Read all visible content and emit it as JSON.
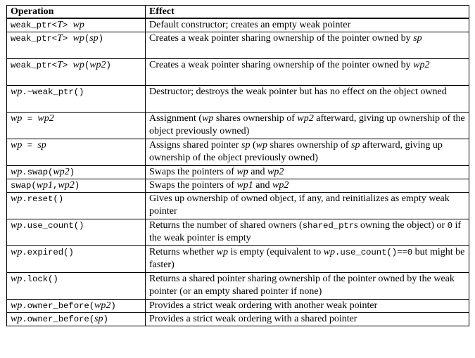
{
  "headers": {
    "operation": "Operation",
    "effect": "Effect"
  },
  "rows": [
    {
      "op": [
        [
          "c",
          "weak_ptr<"
        ],
        [
          "i",
          "T"
        ],
        [
          "c",
          "> "
        ],
        [
          "i",
          "wp"
        ]
      ],
      "effect": [
        [
          "t",
          "Default constructor; creates an empty weak pointer"
        ]
      ],
      "lines": 1
    },
    {
      "op": [
        [
          "c",
          "weak_ptr<"
        ],
        [
          "i",
          "T"
        ],
        [
          "c",
          "> "
        ],
        [
          "i",
          "wp"
        ],
        [
          "c",
          "("
        ],
        [
          "i",
          "sp"
        ],
        [
          "c",
          ")"
        ]
      ],
      "effect": [
        [
          "t",
          "Creates a weak pointer sharing ownership of the pointer owned by "
        ],
        [
          "i",
          "sp"
        ]
      ],
      "lines": 2
    },
    {
      "op": [
        [
          "c",
          "weak_ptr<"
        ],
        [
          "i",
          "T"
        ],
        [
          "c",
          "> "
        ],
        [
          "i",
          "wp"
        ],
        [
          "c",
          "("
        ],
        [
          "i",
          "wp2"
        ],
        [
          "c",
          ")"
        ]
      ],
      "effect": [
        [
          "t",
          "Creates a weak pointer sharing ownership of the pointer owned by "
        ],
        [
          "i",
          "wp2"
        ]
      ],
      "lines": 2
    },
    {
      "op": [
        [
          "i",
          "wp"
        ],
        [
          "c",
          ".~weak_ptr()"
        ]
      ],
      "effect": [
        [
          "t",
          "Destructor; destroys the weak pointer but has no effect on the object owned"
        ]
      ],
      "lines": 2
    },
    {
      "op": [
        [
          "i",
          "wp"
        ],
        [
          "c",
          " = "
        ],
        [
          "i",
          "wp2"
        ]
      ],
      "effect": [
        [
          "t",
          "Assignment ("
        ],
        [
          "i",
          "wp"
        ],
        [
          "t",
          " shares ownership of "
        ],
        [
          "i",
          "wp2"
        ],
        [
          "t",
          " afterward, giving up ownership of the object previously owned)"
        ]
      ],
      "lines": 2
    },
    {
      "op": [
        [
          "i",
          "wp"
        ],
        [
          "c",
          " = "
        ],
        [
          "i",
          "sp"
        ]
      ],
      "effect": [
        [
          "t",
          "Assigns shared pointer "
        ],
        [
          "i",
          "sp"
        ],
        [
          "t",
          " ("
        ],
        [
          "i",
          "wp"
        ],
        [
          "t",
          " shares ownership of "
        ],
        [
          "i",
          "sp"
        ],
        [
          "t",
          " afterward, giving up ownership of the object previously owned)"
        ]
      ],
      "lines": 2
    },
    {
      "op": [
        [
          "i",
          "wp"
        ],
        [
          "c",
          ".swap("
        ],
        [
          "i",
          "wp2"
        ],
        [
          "c",
          ")"
        ]
      ],
      "effect": [
        [
          "t",
          "Swaps the pointers of "
        ],
        [
          "i",
          "wp"
        ],
        [
          "t",
          " and "
        ],
        [
          "i",
          "wp2"
        ]
      ],
      "lines": 1
    },
    {
      "op": [
        [
          "c",
          "swap("
        ],
        [
          "i",
          "wp1"
        ],
        [
          "c",
          ","
        ],
        [
          "i",
          "wp2"
        ],
        [
          "c",
          ")"
        ]
      ],
      "effect": [
        [
          "t",
          "Swaps the pointers of "
        ],
        [
          "i",
          "wp1"
        ],
        [
          "t",
          " and "
        ],
        [
          "i",
          "wp2"
        ]
      ],
      "lines": 1
    },
    {
      "op": [
        [
          "i",
          "wp"
        ],
        [
          "c",
          ".reset()"
        ]
      ],
      "effect": [
        [
          "t",
          "Gives up ownership of owned object, if any, and reinitializes as empty weak pointer"
        ]
      ],
      "lines": 2
    },
    {
      "op": [
        [
          "i",
          "wp"
        ],
        [
          "c",
          ".use_count()"
        ]
      ],
      "effect": [
        [
          "t",
          "Returns the number of shared owners ("
        ],
        [
          "c",
          "shared_ptr"
        ],
        [
          "t",
          "s owning the object) or "
        ],
        [
          "c",
          "0"
        ],
        [
          "t",
          " if the weak pointer is empty"
        ]
      ],
      "lines": 2
    },
    {
      "op": [
        [
          "i",
          "wp"
        ],
        [
          "c",
          ".expired()"
        ]
      ],
      "effect": [
        [
          "t",
          "Returns whether "
        ],
        [
          "i",
          "wp"
        ],
        [
          "t",
          " is empty (equivalent to "
        ],
        [
          "i",
          "wp"
        ],
        [
          "c",
          ".use_count()==0"
        ],
        [
          "t",
          " but might be faster)"
        ]
      ],
      "lines": 2
    },
    {
      "op": [
        [
          "i",
          "wp"
        ],
        [
          "c",
          ".lock()"
        ]
      ],
      "effect": [
        [
          "t",
          "Returns a shared pointer sharing ownership of the pointer owned by the weak pointer (or an empty shared pointer if none)"
        ]
      ],
      "lines": 2
    },
    {
      "op": [
        [
          "i",
          "wp"
        ],
        [
          "c",
          ".owner_before("
        ],
        [
          "i",
          "wp2"
        ],
        [
          "c",
          ")"
        ]
      ],
      "effect": [
        [
          "t",
          "Provides a strict weak ordering with another weak pointer"
        ]
      ],
      "lines": 1
    },
    {
      "op": [
        [
          "i",
          "wp"
        ],
        [
          "c",
          ".owner_before("
        ],
        [
          "i",
          "sp"
        ],
        [
          "c",
          ")"
        ]
      ],
      "effect": [
        [
          "t",
          "Provides a strict weak ordering with a shared pointer"
        ]
      ],
      "lines": 1
    }
  ]
}
